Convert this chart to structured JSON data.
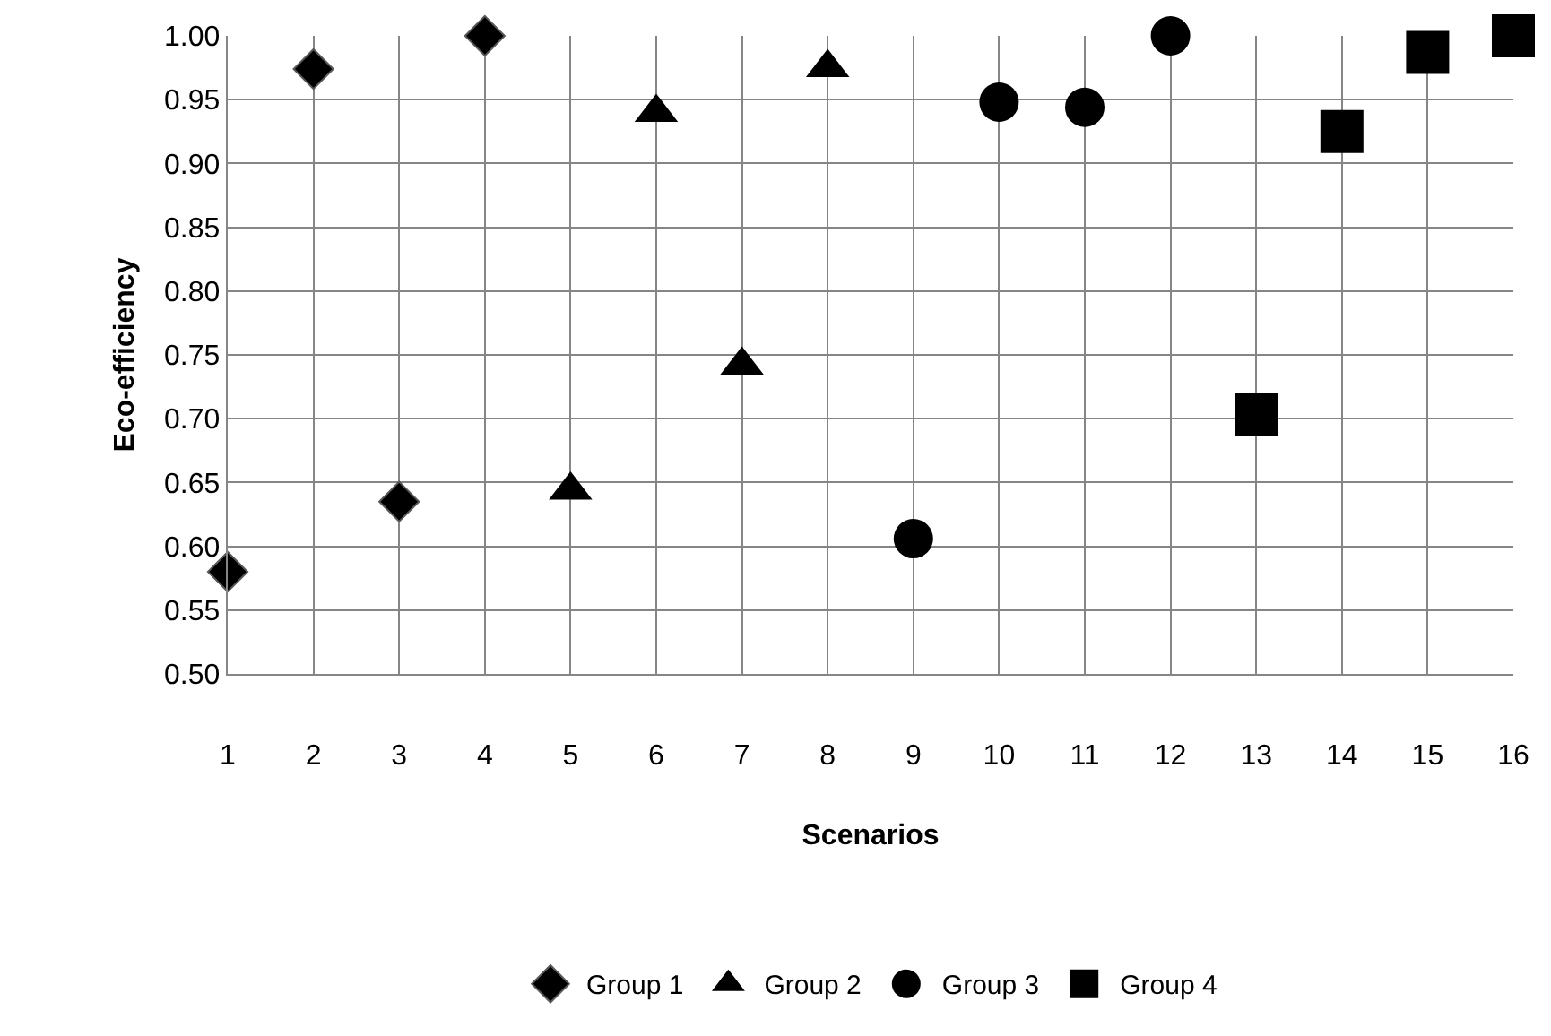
{
  "chart_data": {
    "type": "scatter",
    "xlabel": "Scenarios",
    "ylabel": "Eco-efficiency",
    "xlim": [
      1,
      16
    ],
    "xticks": [
      1,
      2,
      3,
      4,
      5,
      6,
      7,
      8,
      9,
      10,
      11,
      12,
      13,
      14,
      15,
      16
    ],
    "ylim": [
      0.5,
      1.0
    ],
    "yticks": [
      {
        "value": 0.5,
        "label": "0.50"
      },
      {
        "value": 0.55,
        "label": "0.55"
      },
      {
        "value": 0.6,
        "label": "0.60"
      },
      {
        "value": 0.65,
        "label": "0.65"
      },
      {
        "value": 0.7,
        "label": "0.70"
      },
      {
        "value": 0.75,
        "label": "0.75"
      },
      {
        "value": 0.8,
        "label": "0.80"
      },
      {
        "value": 0.85,
        "label": "0.85"
      },
      {
        "value": 0.9,
        "label": "0.90"
      },
      {
        "value": 0.95,
        "label": "0.95"
      },
      {
        "value": 1.0,
        "label": "1.00"
      }
    ],
    "grid": true,
    "legend": "bottom",
    "series": [
      {
        "name": "Group 1",
        "color": "#000000",
        "marker": "diamond",
        "x": [
          1,
          2,
          3,
          4
        ],
        "values": [
          0.58,
          0.974,
          0.635,
          1.0
        ]
      },
      {
        "name": "Group 2",
        "color": "#000000",
        "marker": "triangle",
        "x": [
          5,
          6,
          7,
          8
        ],
        "values": [
          0.644,
          0.94,
          0.742,
          0.975
        ]
      },
      {
        "name": "Group 3",
        "color": "#000000",
        "marker": "circle",
        "x": [
          9,
          10,
          11,
          12
        ],
        "values": [
          0.606,
          0.948,
          0.944,
          1.0
        ]
      },
      {
        "name": "Group 4",
        "color": "#000000",
        "marker": "square",
        "x": [
          13,
          14,
          15,
          16
        ],
        "values": [
          0.703,
          0.925,
          0.987,
          1.0
        ]
      }
    ]
  }
}
